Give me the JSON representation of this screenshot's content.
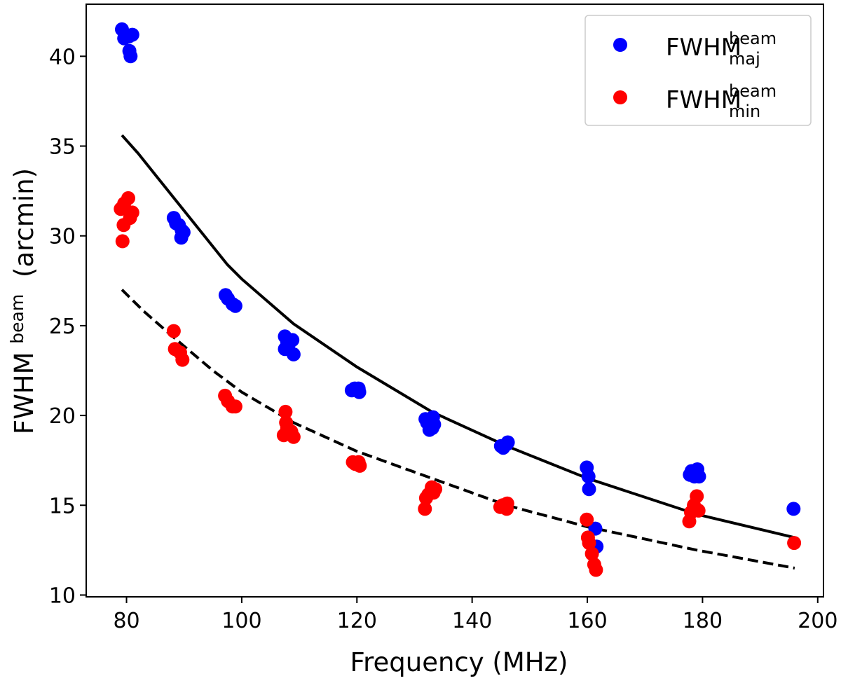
{
  "chart_data": {
    "type": "scatter",
    "xlabel": "Frequency (MHz)",
    "ylabel": {
      "base": "FWHM",
      "sup": "beam",
      "unit": "(arcmin)"
    },
    "xlim": [
      73,
      201
    ],
    "ylim": [
      9.9,
      42.9
    ],
    "xticks": [
      80,
      100,
      120,
      140,
      160,
      180,
      200
    ],
    "yticks": [
      10,
      15,
      20,
      25,
      30,
      35,
      40
    ],
    "legend_position": "top-right",
    "series": [
      {
        "name": "FWHM_maj^beam",
        "label": {
          "base": "FWHM",
          "sup": "beam",
          "sub": "maj"
        },
        "color": "#0000ff",
        "points": [
          [
            79.2,
            41.5
          ],
          [
            79.6,
            41.0
          ],
          [
            80.4,
            41.1
          ],
          [
            81.0,
            41.2
          ],
          [
            80.5,
            40.3
          ],
          [
            80.7,
            40.0
          ],
          [
            88.2,
            31.0
          ],
          [
            88.6,
            30.7
          ],
          [
            89.1,
            30.6
          ],
          [
            89.6,
            30.3
          ],
          [
            89.5,
            29.9
          ],
          [
            89.9,
            30.2
          ],
          [
            97.2,
            26.7
          ],
          [
            97.6,
            26.5
          ],
          [
            98.4,
            26.2
          ],
          [
            98.9,
            26.1
          ],
          [
            107.5,
            24.4
          ],
          [
            107.9,
            24.1
          ],
          [
            108.1,
            23.9
          ],
          [
            107.5,
            23.7
          ],
          [
            108.8,
            24.2
          ],
          [
            109.0,
            23.4
          ],
          [
            119.1,
            21.4
          ],
          [
            119.6,
            21.5
          ],
          [
            120.3,
            21.5
          ],
          [
            120.4,
            21.3
          ],
          [
            131.9,
            19.8
          ],
          [
            132.2,
            19.6
          ],
          [
            132.6,
            19.2
          ],
          [
            133.2,
            19.9
          ],
          [
            133.4,
            19.5
          ],
          [
            133.1,
            19.3
          ],
          [
            145.0,
            18.3
          ],
          [
            145.4,
            18.2
          ],
          [
            146.0,
            18.4
          ],
          [
            146.2,
            18.5
          ],
          [
            159.9,
            17.1
          ],
          [
            160.2,
            16.6
          ],
          [
            160.3,
            15.9
          ],
          [
            161.4,
            13.7
          ],
          [
            161.6,
            12.7
          ],
          [
            177.8,
            16.7
          ],
          [
            178.1,
            16.9
          ],
          [
            178.6,
            16.6
          ],
          [
            179.1,
            17.0
          ],
          [
            179.4,
            16.6
          ],
          [
            195.8,
            14.8
          ]
        ]
      },
      {
        "name": "FWHM_min^beam",
        "label": {
          "base": "FWHM",
          "sup": "beam",
          "sub": "min"
        },
        "color": "#ff0000",
        "points": [
          [
            79.0,
            31.5
          ],
          [
            79.6,
            31.8
          ],
          [
            80.3,
            32.1
          ],
          [
            79.5,
            30.6
          ],
          [
            80.6,
            31.0
          ],
          [
            81.0,
            31.3
          ],
          [
            79.3,
            29.7
          ],
          [
            88.2,
            24.7
          ],
          [
            88.4,
            23.7
          ],
          [
            89.3,
            23.5
          ],
          [
            89.7,
            23.1
          ],
          [
            97.1,
            21.1
          ],
          [
            97.6,
            20.8
          ],
          [
            98.4,
            20.5
          ],
          [
            98.9,
            20.5
          ],
          [
            107.6,
            20.2
          ],
          [
            107.7,
            19.6
          ],
          [
            107.9,
            19.3
          ],
          [
            107.3,
            18.9
          ],
          [
            108.6,
            19.1
          ],
          [
            109.0,
            18.8
          ],
          [
            119.3,
            17.4
          ],
          [
            119.7,
            17.3
          ],
          [
            120.3,
            17.4
          ],
          [
            120.5,
            17.2
          ],
          [
            131.8,
            14.8
          ],
          [
            132.0,
            15.4
          ],
          [
            132.4,
            15.6
          ],
          [
            133.0,
            16.0
          ],
          [
            133.3,
            15.7
          ],
          [
            133.6,
            15.9
          ],
          [
            144.9,
            14.9
          ],
          [
            145.3,
            15.0
          ],
          [
            146.0,
            14.8
          ],
          [
            146.1,
            15.1
          ],
          [
            159.9,
            14.2
          ],
          [
            160.1,
            13.2
          ],
          [
            160.3,
            12.9
          ],
          [
            160.8,
            12.3
          ],
          [
            161.2,
            11.7
          ],
          [
            161.5,
            11.4
          ],
          [
            177.7,
            14.1
          ],
          [
            178.0,
            14.6
          ],
          [
            178.5,
            15.0
          ],
          [
            179.0,
            15.5
          ],
          [
            179.3,
            14.7
          ],
          [
            195.9,
            12.9
          ]
        ]
      }
    ],
    "curves": [
      {
        "name": "maj fit",
        "style": "solid",
        "color": "#000000",
        "x": [
          79.2,
          82,
          86,
          90,
          97.5,
          100,
          109,
          120,
          133,
          146,
          160,
          179,
          196
        ],
        "y": [
          35.6,
          34.6,
          33.0,
          31.4,
          28.4,
          27.6,
          25.1,
          22.7,
          20.2,
          18.3,
          16.5,
          14.5,
          13.2
        ]
      },
      {
        "name": "min fit",
        "style": "dashed",
        "color": "#000000",
        "x": [
          79.2,
          83,
          88,
          95,
          100,
          109,
          120,
          133,
          146,
          160,
          179,
          196
        ],
        "y": [
          27.0,
          25.8,
          24.4,
          22.5,
          21.3,
          19.6,
          18.0,
          16.5,
          15.0,
          13.8,
          12.5,
          11.5
        ]
      }
    ]
  }
}
